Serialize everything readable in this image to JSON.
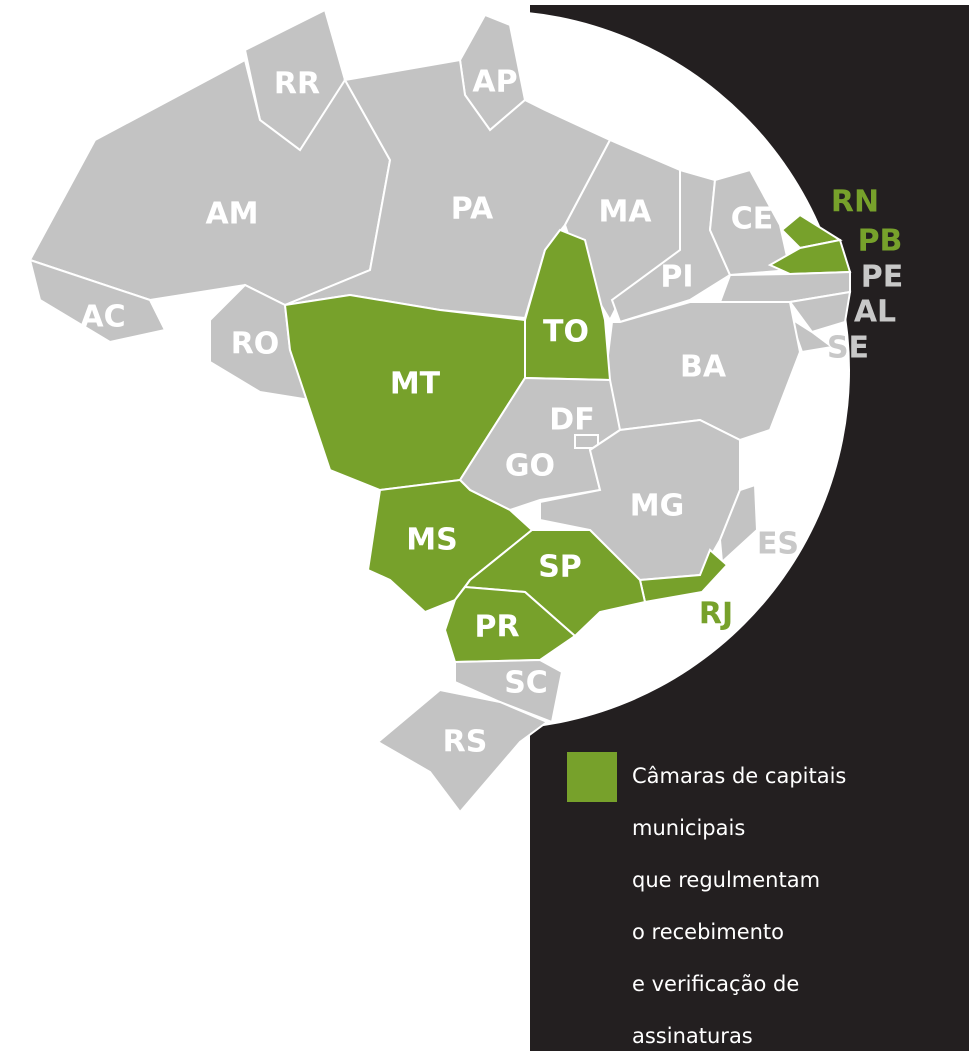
{
  "map": {
    "states": [
      {
        "label": "RR",
        "highlighted": false
      },
      {
        "label": "AP",
        "highlighted": false
      },
      {
        "label": "AM",
        "highlighted": false
      },
      {
        "label": "AC",
        "highlighted": false
      },
      {
        "label": "RO",
        "highlighted": false
      },
      {
        "label": "PA",
        "highlighted": false
      },
      {
        "label": "MA",
        "highlighted": false
      },
      {
        "label": "PI",
        "highlighted": false
      },
      {
        "label": "CE",
        "highlighted": false
      },
      {
        "label": "RN",
        "highlighted": true
      },
      {
        "label": "PB",
        "highlighted": true
      },
      {
        "label": "PE",
        "highlighted": false
      },
      {
        "label": "AL",
        "highlighted": false
      },
      {
        "label": "SE",
        "highlighted": false
      },
      {
        "label": "BA",
        "highlighted": false
      },
      {
        "label": "TO",
        "highlighted": true
      },
      {
        "label": "MT",
        "highlighted": true
      },
      {
        "label": "GO",
        "highlighted": false
      },
      {
        "label": "DF",
        "highlighted": false
      },
      {
        "label": "MG",
        "highlighted": false
      },
      {
        "label": "ES",
        "highlighted": false
      },
      {
        "label": "RJ",
        "highlighted": true
      },
      {
        "label": "MS",
        "highlighted": true
      },
      {
        "label": "SP",
        "highlighted": true
      },
      {
        "label": "PR",
        "highlighted": true
      },
      {
        "label": "SC",
        "highlighted": false
      },
      {
        "label": "RS",
        "highlighted": false
      }
    ],
    "highlight_color": "#77a12b",
    "base_color": "#c3c3c3",
    "legend": {
      "lines": [
        "Câmaras de capitais",
        "municipais",
        "que regulmentam",
        "o recebimento",
        "e verificação de",
        "assinaturas"
      ]
    }
  }
}
